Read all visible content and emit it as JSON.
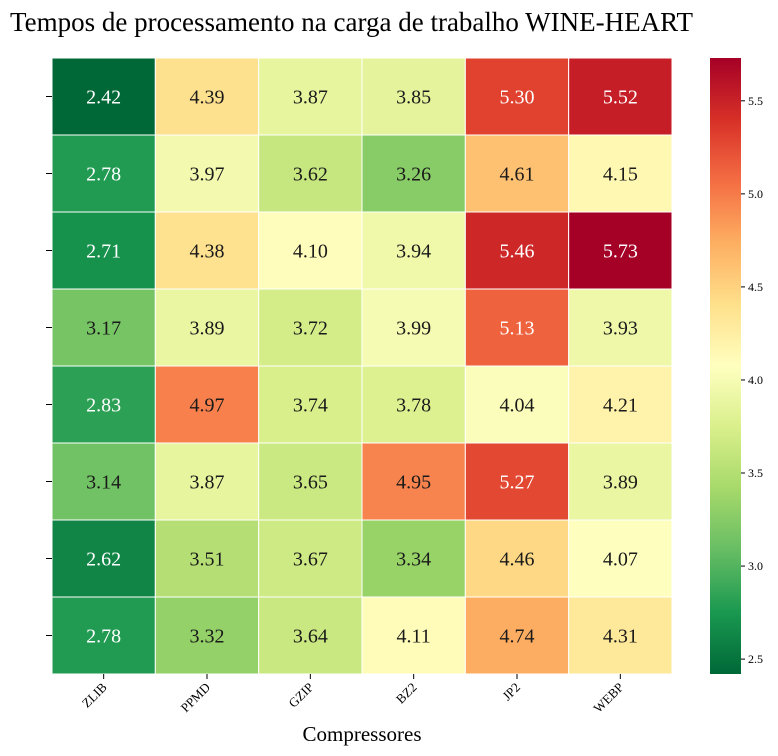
{
  "chart_data": {
    "type": "heatmap",
    "title": "Tempos de processamento na carga de trabalho WINE-HEART",
    "xlabel": "Compressores",
    "ylabel": "",
    "columns": [
      "ZLIB",
      "PPMD",
      "GZIP",
      "BZ2",
      "JP2",
      "WEBP"
    ],
    "row_count": 8,
    "values": [
      [
        2.42,
        4.39,
        3.87,
        3.85,
        5.3,
        5.52
      ],
      [
        2.78,
        3.97,
        3.62,
        3.26,
        4.61,
        4.15
      ],
      [
        2.71,
        4.38,
        4.1,
        3.94,
        5.46,
        5.73
      ],
      [
        3.17,
        3.89,
        3.72,
        3.99,
        5.13,
        3.93
      ],
      [
        2.83,
        4.97,
        3.74,
        3.78,
        4.04,
        4.21
      ],
      [
        3.14,
        3.87,
        3.65,
        4.95,
        5.27,
        3.89
      ],
      [
        2.62,
        3.51,
        3.67,
        3.34,
        4.46,
        4.07
      ],
      [
        2.78,
        3.32,
        3.64,
        4.11,
        4.74,
        4.31
      ]
    ],
    "colormap": "RdYlGn_r",
    "colorbar": {
      "range": [
        2.42,
        5.73
      ],
      "ticks": [
        2.5,
        3.0,
        3.5,
        4.0,
        4.5,
        5.0,
        5.5
      ],
      "tick_labels": [
        "2.5",
        "3.0",
        "3.5",
        "4.0",
        "4.5",
        "5.0",
        "5.5"
      ],
      "position": "right"
    }
  }
}
